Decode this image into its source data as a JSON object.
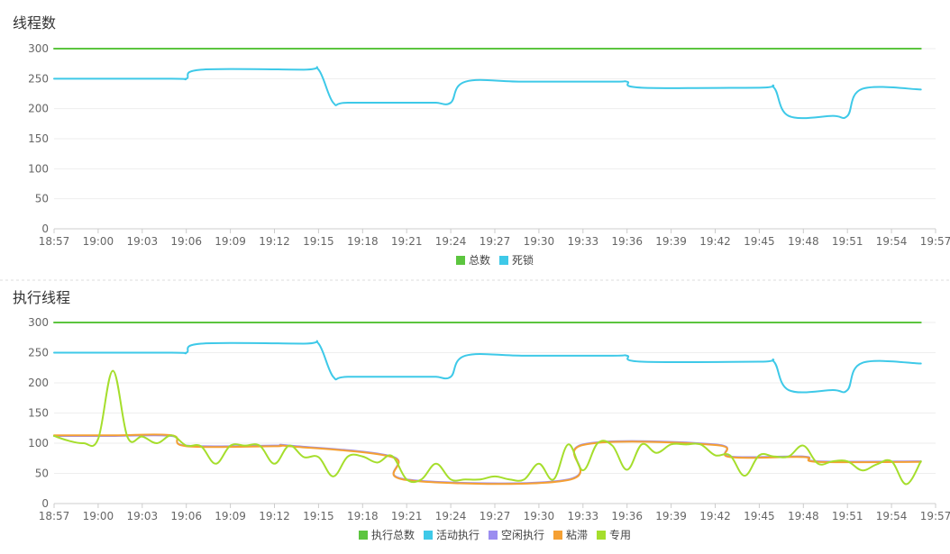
{
  "chart_data": [
    {
      "type": "line",
      "title": "线程数",
      "ylim": [
        0,
        300
      ],
      "yticks": [
        0,
        50,
        100,
        150,
        200,
        250,
        300
      ],
      "xlim": [
        "18:57",
        "19:57"
      ],
      "xticks": [
        "18:57",
        "19:00",
        "19:03",
        "19:06",
        "19:09",
        "19:12",
        "19:15",
        "19:18",
        "19:21",
        "19:24",
        "19:27",
        "19:30",
        "19:33",
        "19:36",
        "19:39",
        "19:42",
        "19:45",
        "19:48",
        "19:51",
        "19:54",
        "19:57"
      ],
      "grid": true,
      "legend": "bottom-center",
      "series": [
        {
          "name": "总数",
          "color": "#5cc53f",
          "x": [
            "18:57",
            "19:56"
          ],
          "y": [
            300,
            300
          ]
        },
        {
          "name": "死锁",
          "color": "#3ec9e8",
          "x": [
            "18:57",
            "19:05",
            "19:06",
            "19:07",
            "19:14",
            "19:15",
            "19:16",
            "19:17",
            "19:22",
            "19:23",
            "19:24",
            "19:25",
            "19:29",
            "19:35",
            "19:36",
            "19:37",
            "19:45",
            "19:46",
            "19:47",
            "19:50",
            "19:51",
            "19:52",
            "19:56"
          ],
          "y": [
            250,
            250,
            250,
            265,
            265,
            265,
            210,
            210,
            210,
            210,
            210,
            245,
            245,
            245,
            245,
            235,
            235,
            235,
            188,
            188,
            188,
            233,
            232
          ]
        }
      ]
    },
    {
      "type": "line",
      "title": "执行线程",
      "ylim": [
        0,
        300
      ],
      "yticks": [
        0,
        50,
        100,
        150,
        200,
        250,
        300
      ],
      "xlim": [
        "18:57",
        "19:57"
      ],
      "xticks": [
        "18:57",
        "19:00",
        "19:03",
        "19:06",
        "19:09",
        "19:12",
        "19:15",
        "19:18",
        "19:21",
        "19:24",
        "19:27",
        "19:30",
        "19:33",
        "19:36",
        "19:39",
        "19:42",
        "19:45",
        "19:48",
        "19:51",
        "19:54",
        "19:57"
      ],
      "grid": true,
      "legend": "bottom-center",
      "series": [
        {
          "name": "执行总数",
          "color": "#5cc53f",
          "x": [
            "18:57",
            "19:56"
          ],
          "y": [
            300,
            300
          ]
        },
        {
          "name": "活动执行",
          "color": "#3ec9e8",
          "x": [
            "18:57",
            "19:05",
            "19:06",
            "19:07",
            "19:14",
            "19:15",
            "19:16",
            "19:17",
            "19:22",
            "19:23",
            "19:24",
            "19:25",
            "19:29",
            "19:35",
            "19:36",
            "19:37",
            "19:45",
            "19:46",
            "19:47",
            "19:50",
            "19:51",
            "19:52",
            "19:56"
          ],
          "y": [
            250,
            250,
            250,
            265,
            265,
            265,
            210,
            210,
            210,
            210,
            210,
            245,
            245,
            245,
            245,
            235,
            235,
            235,
            188,
            188,
            188,
            233,
            232
          ]
        },
        {
          "name": "空闲执行",
          "color": "#9b8df0",
          "x": [
            "18:57",
            "19:01",
            "19:05",
            "19:06",
            "19:12",
            "19:13",
            "19:20",
            "19:21",
            "19:32",
            "19:33",
            "19:42",
            "19:43",
            "19:48",
            "19:49",
            "19:56"
          ],
          "y": [
            112,
            112,
            112,
            96,
            96,
            96,
            78,
            40,
            40,
            98,
            98,
            78,
            78,
            70,
            70
          ]
        },
        {
          "name": "粘滞",
          "color": "#f5a033",
          "x": [
            "18:57",
            "19:01",
            "19:05",
            "19:06",
            "19:12",
            "19:13",
            "19:20",
            "19:21",
            "19:32",
            "19:33",
            "19:42",
            "19:43",
            "19:48",
            "19:49",
            "19:56"
          ],
          "y": [
            113,
            113,
            113,
            95,
            95,
            95,
            77,
            39,
            39,
            97,
            97,
            77,
            77,
            69,
            69
          ]
        },
        {
          "name": "专用",
          "color": "#a5de2c",
          "x": [
            "18:57",
            "18:58",
            "18:59",
            "19:00",
            "19:01",
            "19:02",
            "19:03",
            "19:04",
            "19:05",
            "19:06",
            "19:07",
            "19:08",
            "19:09",
            "19:10",
            "19:11",
            "19:12",
            "19:13",
            "19:14",
            "19:15",
            "19:16",
            "19:17",
            "19:18",
            "19:19",
            "19:20",
            "19:21",
            "19:22",
            "19:23",
            "19:24",
            "19:25",
            "19:26",
            "19:27",
            "19:28",
            "19:29",
            "19:30",
            "19:31",
            "19:32",
            "19:33",
            "19:34",
            "19:35",
            "19:36",
            "19:37",
            "19:38",
            "19:39",
            "19:40",
            "19:41",
            "19:42",
            "19:43",
            "19:44",
            "19:45",
            "19:46",
            "19:47",
            "19:48",
            "19:49",
            "19:50",
            "19:51",
            "19:52",
            "19:53",
            "19:54",
            "19:55",
            "19:56"
          ],
          "y": [
            112,
            104,
            100,
            107,
            220,
            110,
            111,
            100,
            113,
            96,
            95,
            66,
            96,
            96,
            96,
            66,
            96,
            77,
            77,
            45,
            78,
            78,
            68,
            79,
            40,
            40,
            66,
            40,
            40,
            40,
            45,
            40,
            40,
            66,
            40,
            98,
            55,
            100,
            96,
            56,
            98,
            84,
            98,
            98,
            98,
            80,
            80,
            46,
            80,
            78,
            78,
            96,
            66,
            70,
            70,
            55,
            65,
            70,
            32,
            70
          ]
        }
      ]
    }
  ]
}
